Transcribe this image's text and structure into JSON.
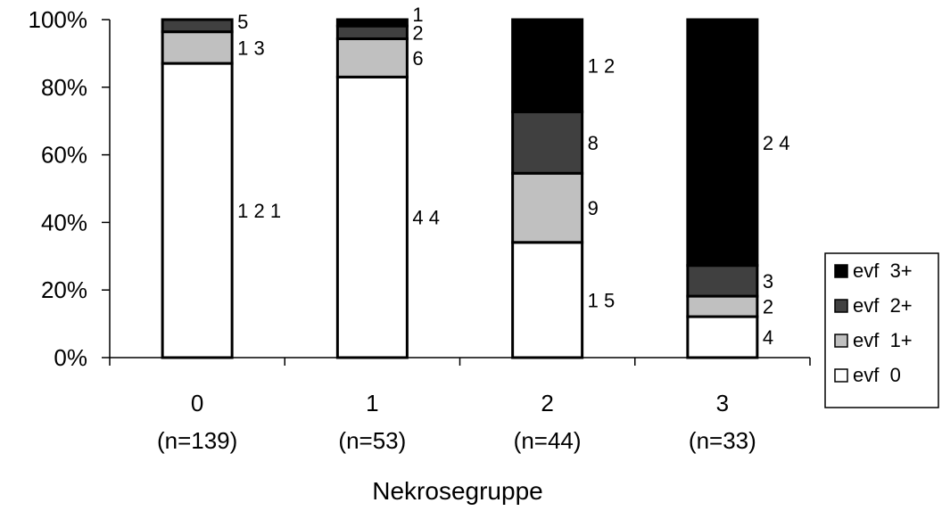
{
  "chart_data": {
    "type": "bar",
    "stacked": "percent",
    "categories": [
      "0",
      "1",
      "2",
      "3"
    ],
    "category_counts": [
      "(n=139)",
      "(n=53)",
      "(n=44)",
      "(n=33)"
    ],
    "series": [
      {
        "name": "evf  0",
        "color": "#ffffff",
        "values": [
          121,
          44,
          15,
          4
        ]
      },
      {
        "name": "evf  1+",
        "color": "#c0c0c0",
        "values": [
          13,
          6,
          9,
          2
        ]
      },
      {
        "name": "evf  2+",
        "color": "#404040",
        "values": [
          5,
          2,
          8,
          3
        ]
      },
      {
        "name": "evf  3+",
        "color": "#000000",
        "values": [
          0,
          1,
          12,
          24
        ]
      }
    ],
    "data_labels": [
      [
        "1 2 1",
        "1 3",
        "5",
        ""
      ],
      [
        "4 4",
        "6",
        "2",
        "1"
      ],
      [
        "1 5",
        "9",
        "8",
        "1 2"
      ],
      [
        "4",
        "2",
        "3",
        "2 4"
      ]
    ],
    "y_ticks": [
      "0%",
      "20%",
      "40%",
      "60%",
      "80%",
      "100%"
    ],
    "ylim": [
      0,
      100
    ],
    "xlabel": "Nekrosegruppe",
    "ylabel": "",
    "legend_position": "right",
    "legend_order": [
      3,
      2,
      1,
      0
    ],
    "grid": false
  }
}
